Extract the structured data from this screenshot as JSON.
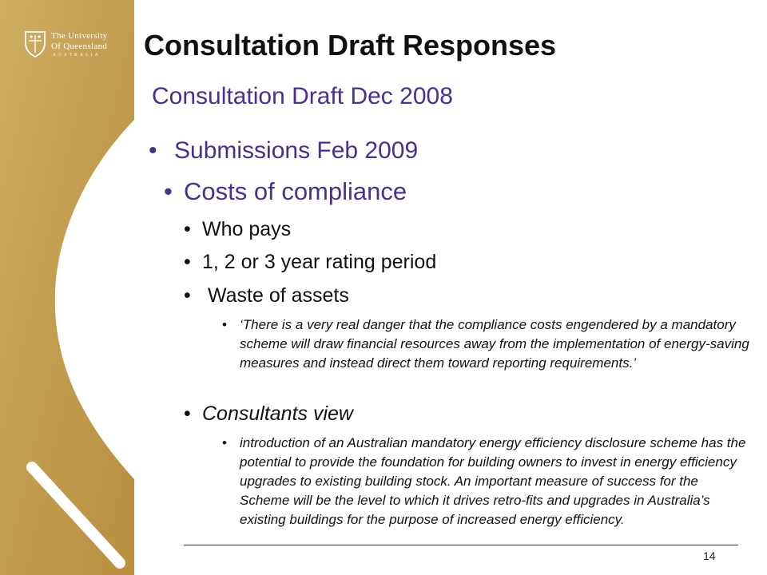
{
  "logo": {
    "line1": "The University",
    "line2": "Of Queensland",
    "line3": "AUSTRALIA"
  },
  "colors": {
    "gold": "#c6a354",
    "purple": "#4a2f8c",
    "text": "#111111"
  },
  "slide": {
    "title": "Consultation Draft Responses",
    "subtitle": "Consultation Draft Dec 2008",
    "bullets": [
      {
        "bullet": "•",
        "text": "Submissions Feb 2009"
      },
      {
        "bullet": "•",
        "text": "Costs of compliance"
      },
      {
        "bullet": "•",
        "text": "Who pays"
      },
      {
        "bullet": "•",
        "text": "1, 2 or 3 year rating period"
      },
      {
        "bullet": "•",
        "text": " Waste of assets"
      },
      {
        "bullet": "•",
        "text": "‘There is a very real danger that the compliance costs engendered by a mandatory scheme will draw financial resources away from the implementation of energy-saving measures and instead direct them toward reporting requirements.’"
      },
      {
        "bullet": "•",
        "text": "Consultants view"
      },
      {
        "bullet": "•",
        "text": "introduction of an Australian mandatory energy efficiency disclosure scheme has the potential to provide the foundation for building owners to invest in energy efficiency upgrades to existing building stock. An important measure of success for the Scheme will be the level to which it drives retro-fits and upgrades in Australia’s existing buildings for the purpose of increased energy efficiency."
      }
    ],
    "page_number": "14"
  }
}
